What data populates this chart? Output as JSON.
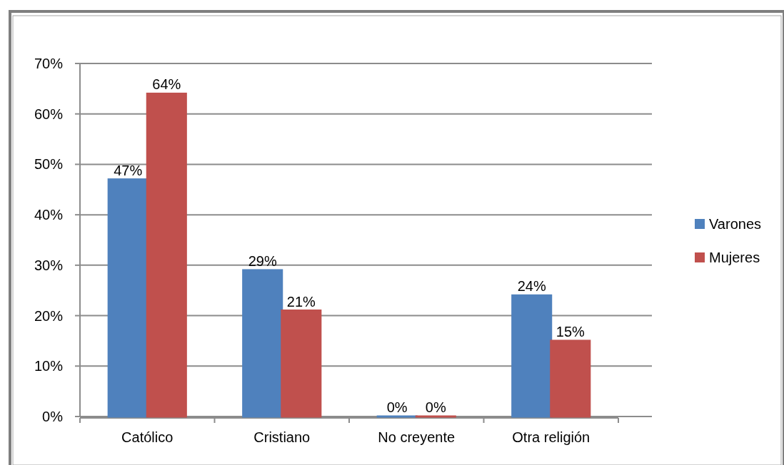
{
  "chart_data": {
    "type": "bar",
    "categories": [
      "Católico",
      "Cristiano",
      "No creyente",
      "Otra religión"
    ],
    "series": [
      {
        "name": "Varones",
        "color": "#4f81bd",
        "values": [
          47,
          29,
          0,
          24
        ],
        "value_labels": [
          "47%",
          "29%",
          "0%",
          "24%"
        ]
      },
      {
        "name": "Mujeres",
        "color": "#c0504d",
        "values": [
          64,
          21,
          0,
          15
        ],
        "value_labels": [
          "64%",
          "21%",
          "0%",
          "15%"
        ]
      }
    ],
    "ylim": [
      0,
      70
    ],
    "yticks": [
      {
        "value": 0,
        "label": "0%"
      },
      {
        "value": 10,
        "label": "10%"
      },
      {
        "value": 20,
        "label": "20%"
      },
      {
        "value": 30,
        "label": "30%"
      },
      {
        "value": 40,
        "label": "40%"
      },
      {
        "value": 50,
        "label": "50%"
      },
      {
        "value": 60,
        "label": "60%"
      },
      {
        "value": 70,
        "label": "70%"
      }
    ],
    "grid": "y",
    "legend": "right"
  }
}
